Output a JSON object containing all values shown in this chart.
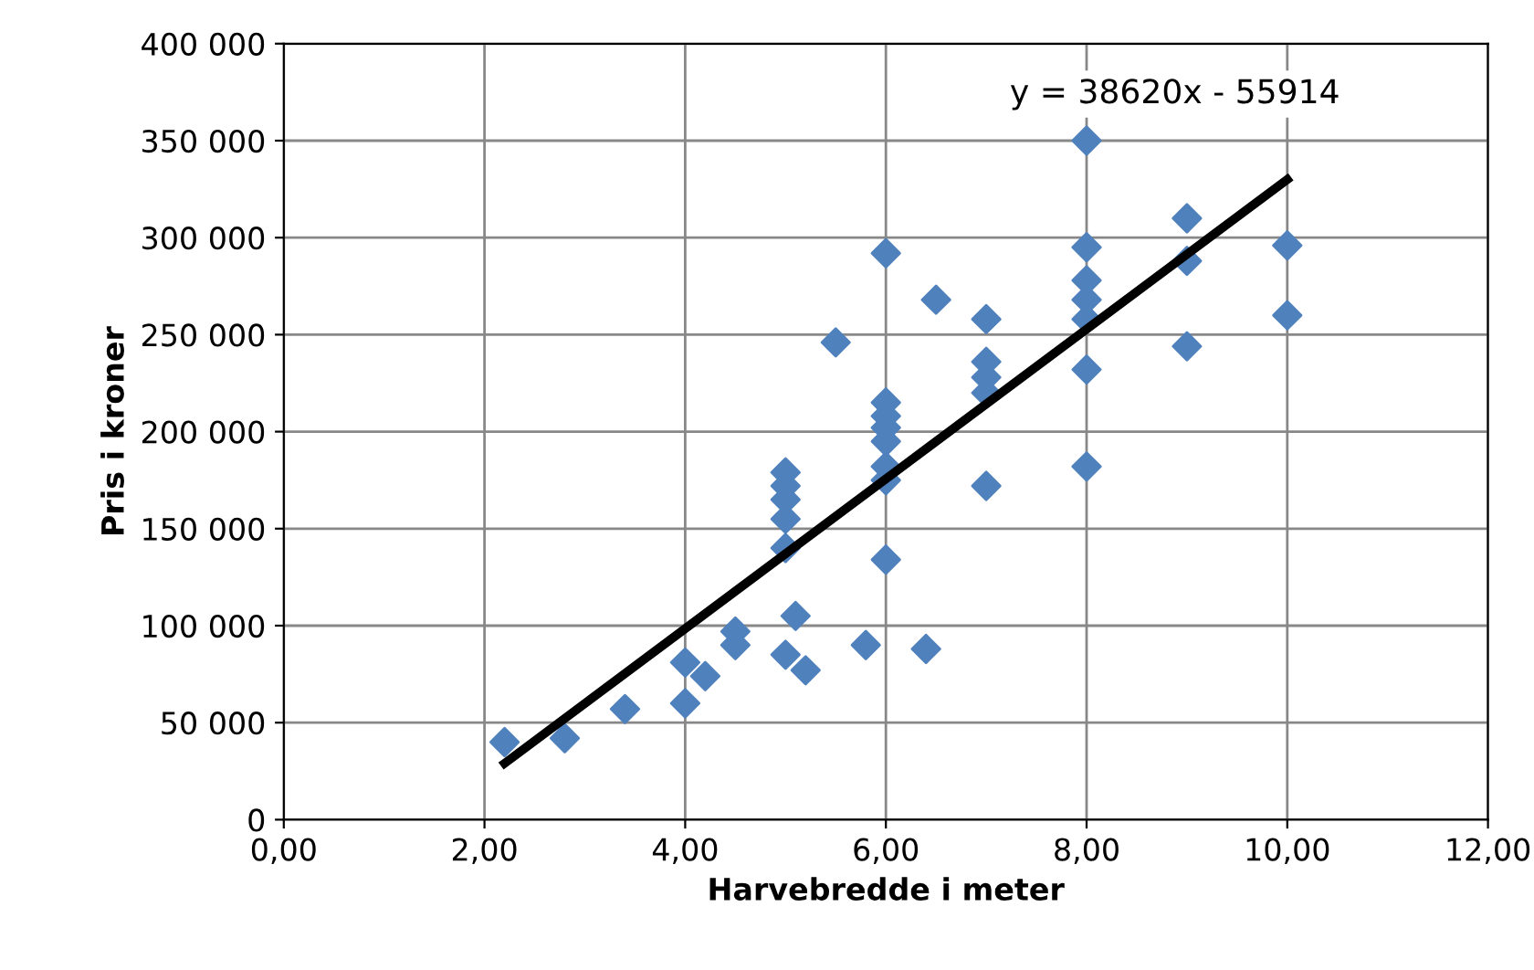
{
  "chart_data": {
    "type": "scatter",
    "xlabel": "Harvebredde i meter",
    "ylabel": "Pris i kroner",
    "xlim": [
      0,
      12
    ],
    "ylim": [
      0,
      400000
    ],
    "xticks": [
      {
        "value": 0,
        "label": "0,00"
      },
      {
        "value": 2,
        "label": "2,00"
      },
      {
        "value": 4,
        "label": "4,00"
      },
      {
        "value": 6,
        "label": "6,00"
      },
      {
        "value": 8,
        "label": "8,00"
      },
      {
        "value": 10,
        "label": "10,00"
      },
      {
        "value": 12,
        "label": "12,00"
      }
    ],
    "yticks": [
      0,
      {
        "value": 50000,
        "label": "50 000"
      },
      {
        "value": 100000,
        "label": "100 000"
      },
      {
        "value": 150000,
        "label": "150 000"
      },
      {
        "value": 200000,
        "label": "200 000"
      },
      {
        "value": 250000,
        "label": "250 000"
      },
      {
        "value": 300000,
        "label": "300 000"
      },
      {
        "value": 350000,
        "label": "350 000"
      },
      {
        "value": 400000,
        "label": "400 000"
      }
    ],
    "grid": true,
    "marker": "diamond",
    "series": [
      {
        "color": "#4f81bd",
        "x": [
          2.2,
          2.8,
          3.4,
          4,
          4,
          4.2,
          4.5,
          4.5,
          5,
          5.1,
          5.2,
          5,
          5,
          5,
          5,
          5,
          5.5,
          5.8,
          6,
          6,
          6,
          6,
          6,
          6,
          6,
          6,
          6.4,
          6.5,
          7,
          7,
          7,
          7,
          7,
          8,
          8,
          8,
          8,
          8,
          8,
          8,
          9,
          9,
          9,
          10,
          10
        ],
        "values": [
          40000,
          42000,
          57000,
          60000,
          81000,
          74000,
          90000,
          97000,
          85000,
          105000,
          77000,
          140000,
          155000,
          165000,
          172000,
          179000,
          246000,
          90000,
          134000,
          175000,
          182000,
          195000,
          202000,
          208000,
          215000,
          292000,
          88000,
          268000,
          172000,
          220000,
          228000,
          236000,
          258000,
          182000,
          232000,
          258000,
          268000,
          278000,
          295000,
          350000,
          244000,
          288000,
          310000,
          260000,
          296000
        ]
      },
      {
        "type": "line",
        "color": "#000000",
        "x": [
          2.2,
          10
        ],
        "values": [
          29000,
          330000
        ],
        "marker": "none"
      }
    ],
    "annotations": [
      "y = 38620x - 55914"
    ]
  }
}
